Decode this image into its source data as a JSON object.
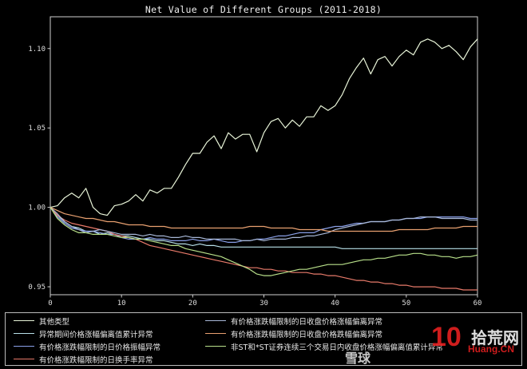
{
  "chart_data": {
    "type": "line",
    "title": "Net Value of Different Groups (2011-2018)",
    "xlabel": "",
    "ylabel": "",
    "xlim": [
      0,
      60
    ],
    "ylim": [
      0.945,
      1.12
    ],
    "xticks": [
      0,
      10,
      20,
      30,
      40,
      50,
      60
    ],
    "yticks": [
      0.95,
      1.0,
      1.05,
      1.1
    ],
    "ytick_labels": [
      "0.95",
      "1.00",
      "1.05",
      "1.10"
    ],
    "grid": false,
    "legend_position": "bottom",
    "x": [
      0,
      1,
      2,
      3,
      4,
      5,
      6,
      7,
      8,
      9,
      10,
      11,
      12,
      13,
      14,
      15,
      16,
      17,
      18,
      19,
      20,
      21,
      22,
      23,
      24,
      25,
      26,
      27,
      28,
      29,
      30,
      31,
      32,
      33,
      34,
      35,
      36,
      37,
      38,
      39,
      40,
      41,
      42,
      43,
      44,
      45,
      46,
      47,
      48,
      49,
      50,
      51,
      52,
      53,
      54,
      55,
      56,
      57,
      58,
      59,
      60
    ],
    "series": [
      {
        "name": "其他类型",
        "color": "#e8f4d8",
        "values": [
          1.0,
          1.001,
          1.006,
          1.009,
          1.006,
          1.012,
          1.0,
          0.996,
          0.995,
          1.001,
          1.002,
          1.004,
          1.008,
          1.004,
          1.011,
          1.009,
          1.012,
          1.012,
          1.019,
          1.027,
          1.034,
          1.034,
          1.041,
          1.045,
          1.037,
          1.047,
          1.043,
          1.046,
          1.046,
          1.035,
          1.047,
          1.054,
          1.056,
          1.05,
          1.055,
          1.051,
          1.057,
          1.057,
          1.064,
          1.061,
          1.064,
          1.071,
          1.081,
          1.088,
          1.094,
          1.084,
          1.093,
          1.095,
          1.089,
          1.095,
          1.099,
          1.096,
          1.104,
          1.106,
          1.104,
          1.1,
          1.102,
          1.098,
          1.093,
          1.101,
          1.106
        ]
      },
      {
        "name": "异常期间价格涨幅偏离值累计异常",
        "color": "#b7dfe8",
        "values": [
          1.0,
          0.995,
          0.991,
          0.988,
          0.987,
          0.985,
          0.985,
          0.983,
          0.984,
          0.983,
          0.982,
          0.982,
          0.981,
          0.98,
          0.98,
          0.979,
          0.979,
          0.978,
          0.977,
          0.977,
          0.976,
          0.977,
          0.976,
          0.976,
          0.975,
          0.975,
          0.975,
          0.975,
          0.975,
          0.975,
          0.975,
          0.975,
          0.975,
          0.975,
          0.975,
          0.975,
          0.975,
          0.975,
          0.975,
          0.975,
          0.975,
          0.974,
          0.974,
          0.974,
          0.974,
          0.974,
          0.974,
          0.974,
          0.974,
          0.974,
          0.974,
          0.974,
          0.974,
          0.974,
          0.974,
          0.974,
          0.974,
          0.974,
          0.974,
          0.974,
          0.974
        ]
      },
      {
        "name": "有价格涨跌幅限制的日价格振幅异常",
        "color": "#8aa0e8",
        "values": [
          1.0,
          0.994,
          0.99,
          0.987,
          0.986,
          0.985,
          0.985,
          0.984,
          0.983,
          0.983,
          0.981,
          0.98,
          0.98,
          0.98,
          0.981,
          0.98,
          0.98,
          0.979,
          0.979,
          0.979,
          0.98,
          0.979,
          0.979,
          0.98,
          0.979,
          0.978,
          0.978,
          0.979,
          0.979,
          0.98,
          0.98,
          0.981,
          0.982,
          0.982,
          0.983,
          0.984,
          0.984,
          0.984,
          0.986,
          0.987,
          0.988,
          0.988,
          0.989,
          0.99,
          0.99,
          0.991,
          0.991,
          0.991,
          0.992,
          0.992,
          0.993,
          0.993,
          0.993,
          0.994,
          0.994,
          0.994,
          0.994,
          0.994,
          0.994,
          0.993,
          0.993
        ]
      },
      {
        "name": "有价格涨跌幅限制的日换手率异常",
        "color": "#e87a6a",
        "values": [
          1.0,
          0.995,
          0.992,
          0.99,
          0.989,
          0.988,
          0.987,
          0.986,
          0.985,
          0.983,
          0.982,
          0.981,
          0.98,
          0.978,
          0.976,
          0.975,
          0.974,
          0.973,
          0.972,
          0.971,
          0.97,
          0.969,
          0.968,
          0.967,
          0.966,
          0.965,
          0.964,
          0.963,
          0.962,
          0.962,
          0.961,
          0.961,
          0.96,
          0.96,
          0.959,
          0.959,
          0.959,
          0.958,
          0.958,
          0.957,
          0.957,
          0.956,
          0.955,
          0.954,
          0.954,
          0.953,
          0.953,
          0.952,
          0.952,
          0.951,
          0.951,
          0.95,
          0.95,
          0.95,
          0.95,
          0.949,
          0.949,
          0.949,
          0.948,
          0.948,
          0.948
        ]
      },
      {
        "name": "有价格涨跌幅限制的日收盘价格涨幅偏离异常",
        "color": "#a8b8d8",
        "values": [
          1.0,
          0.996,
          0.991,
          0.988,
          0.986,
          0.984,
          0.985,
          0.986,
          0.985,
          0.984,
          0.983,
          0.983,
          0.983,
          0.982,
          0.983,
          0.982,
          0.982,
          0.981,
          0.981,
          0.982,
          0.981,
          0.981,
          0.98,
          0.98,
          0.98,
          0.98,
          0.98,
          0.979,
          0.979,
          0.98,
          0.979,
          0.98,
          0.98,
          0.98,
          0.981,
          0.981,
          0.982,
          0.982,
          0.983,
          0.984,
          0.986,
          0.987,
          0.988,
          0.989,
          0.99,
          0.991,
          0.991,
          0.991,
          0.992,
          0.992,
          0.993,
          0.993,
          0.994,
          0.994,
          0.994,
          0.993,
          0.993,
          0.993,
          0.993,
          0.992,
          0.992
        ]
      },
      {
        "name": "有价格涨跌幅限制的日收盘价格跌幅偏离异常",
        "color": "#e8a070",
        "values": [
          1.0,
          0.998,
          0.996,
          0.995,
          0.994,
          0.993,
          0.993,
          0.992,
          0.991,
          0.991,
          0.99,
          0.989,
          0.989,
          0.989,
          0.988,
          0.988,
          0.988,
          0.987,
          0.987,
          0.987,
          0.987,
          0.987,
          0.987,
          0.987,
          0.987,
          0.987,
          0.987,
          0.987,
          0.988,
          0.988,
          0.988,
          0.987,
          0.987,
          0.987,
          0.987,
          0.986,
          0.986,
          0.986,
          0.986,
          0.985,
          0.985,
          0.985,
          0.985,
          0.985,
          0.985,
          0.985,
          0.985,
          0.985,
          0.985,
          0.986,
          0.986,
          0.986,
          0.986,
          0.986,
          0.987,
          0.987,
          0.987,
          0.987,
          0.988,
          0.988,
          0.988
        ]
      },
      {
        "name": "非ST和*ST证券连续三个交易日内收盘价格涨幅偏离值累计异常",
        "color": "#b8e08a",
        "values": [
          1.0,
          0.993,
          0.989,
          0.986,
          0.984,
          0.984,
          0.983,
          0.983,
          0.983,
          0.982,
          0.981,
          0.981,
          0.98,
          0.98,
          0.979,
          0.978,
          0.977,
          0.976,
          0.976,
          0.974,
          0.973,
          0.972,
          0.971,
          0.97,
          0.969,
          0.967,
          0.965,
          0.963,
          0.961,
          0.958,
          0.957,
          0.957,
          0.958,
          0.959,
          0.96,
          0.961,
          0.961,
          0.962,
          0.963,
          0.964,
          0.964,
          0.964,
          0.965,
          0.966,
          0.967,
          0.967,
          0.968,
          0.968,
          0.969,
          0.97,
          0.97,
          0.971,
          0.971,
          0.97,
          0.97,
          0.969,
          0.969,
          0.968,
          0.969,
          0.969,
          0.97
        ]
      }
    ]
  },
  "watermark": {
    "logo_number": "10",
    "logo_text": "拾荒网",
    "logo_url_text": "Huang.CN",
    "secondary_text": "雪球"
  }
}
